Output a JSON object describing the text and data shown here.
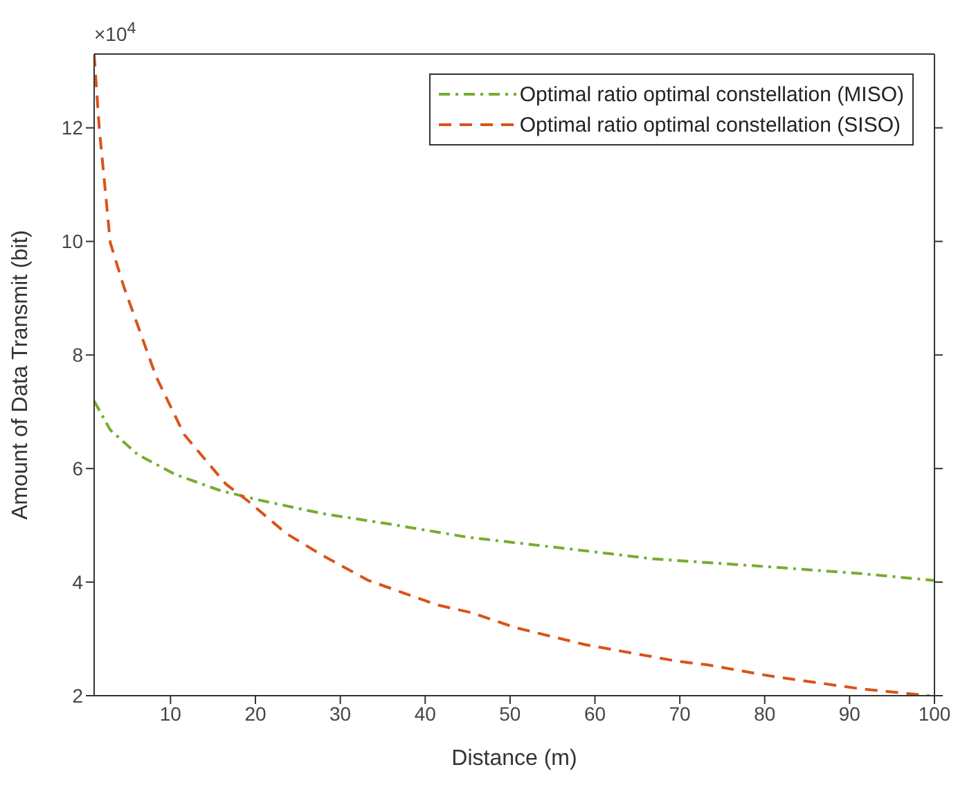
{
  "chart_data": {
    "type": "line",
    "xlabel": "Distance (m)",
    "ylabel": "Amount of Data Transmit (bit)",
    "annotations": [
      "×10$^{4}$"
    ],
    "xlim": [
      1,
      100
    ],
    "xticks": [
      10,
      20,
      30,
      40,
      50,
      60,
      70,
      80,
      90,
      100
    ],
    "ylim": [
      2,
      13.3
    ],
    "yticks": [
      2,
      4,
      6,
      8,
      10,
      12
    ],
    "legend": "top right",
    "marker": "none",
    "series": [
      {
        "name": "Optimal ratio optimal constellation (MISO)",
        "color": "#77ac30",
        "line_style": "dashdot",
        "x": [
          1,
          2.9,
          6.1,
          10.5,
          15.9,
          20.3,
          27.8,
          35.9,
          45,
          56.1,
          66.8,
          80.5,
          91.3,
          100
        ],
        "values": [
          7.19,
          6.68,
          6.25,
          5.9,
          5.61,
          5.45,
          5.21,
          5.02,
          4.79,
          4.6,
          4.41,
          4.27,
          4.15,
          4.03
        ]
      },
      {
        "name": "Optimal ratio optimal constellation (SISO)",
        "color": "#d95319",
        "line_style": "dashed",
        "x": [
          1,
          1.6,
          2.9,
          4.5,
          8.3,
          11.6,
          16.5,
          19.2,
          23.6,
          27.8,
          33.3,
          41.4,
          45.5,
          50.6,
          58.8,
          69.6,
          73.4,
          80.5,
          91.3,
          99.4
        ],
        "values": [
          13.3,
          12,
          9.98,
          9.2,
          7.62,
          6.6,
          5.73,
          5.42,
          4.86,
          4.48,
          4.03,
          3.6,
          3.46,
          3.2,
          2.9,
          2.61,
          2.54,
          2.35,
          2.12,
          2.0
        ]
      }
    ]
  }
}
